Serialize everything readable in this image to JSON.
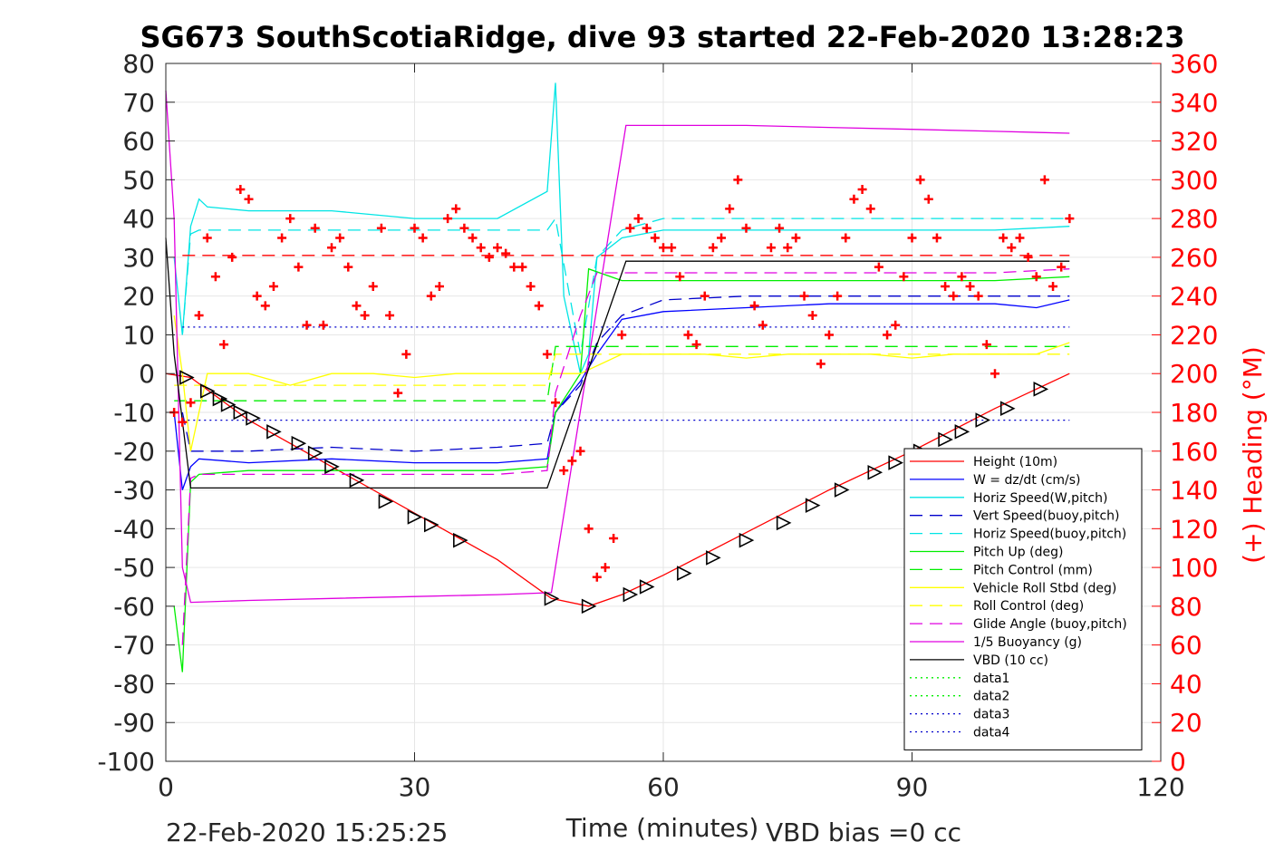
{
  "chart_data": {
    "type": "line",
    "title": "SG673 SouthScotiaRidge, dive 93 started 22-Feb-2020 13:28:23",
    "xlabel": "Time (minutes)",
    "ylabel_right": "(+) Heading (°M)",
    "footer_left": "22-Feb-2020 15:25:25",
    "footer_right": "VBD bias =0 cc",
    "xlim": [
      0,
      120
    ],
    "ylim": [
      -100,
      80
    ],
    "ylim_right": [
      0,
      360
    ],
    "xticks": [
      "0",
      "30",
      "60",
      "90",
      "120"
    ],
    "yticks": [
      "80",
      "70",
      "60",
      "50",
      "40",
      "30",
      "20",
      "10",
      "0",
      "-10",
      "-20",
      "-30",
      "-40",
      "-50",
      "-60",
      "-70",
      "-80",
      "-90",
      "-100"
    ],
    "yticks_right": [
      "360",
      "340",
      "320",
      "300",
      "280",
      "260",
      "240",
      "220",
      "200",
      "180",
      "160",
      "140",
      "120",
      "100",
      "80",
      "60",
      "40",
      "20",
      "0"
    ],
    "grid": true,
    "legend_position": "bottom-right",
    "series": [
      {
        "name": "Height (10m)",
        "color": "#ff0000",
        "style": "solid",
        "x": [
          0,
          3,
          10,
          20,
          30,
          40,
          46.5,
          51,
          55,
          60,
          70,
          80,
          90,
          100,
          109
        ],
        "y": [
          0,
          -1,
          -12,
          -24,
          -36,
          -48,
          -58,
          -60,
          -57,
          -52,
          -41,
          -30,
          -20,
          -9,
          0
        ]
      },
      {
        "name": "W = dz/dt (cm/s)",
        "color": "#0000ff",
        "style": "solid",
        "x": [
          1,
          2,
          3,
          4,
          10,
          20,
          30,
          40,
          46,
          47,
          50,
          52,
          55,
          60,
          70,
          80,
          90,
          100,
          105,
          109
        ],
        "y": [
          -10,
          -30,
          -24,
          -22,
          -23,
          -22,
          -23,
          -23,
          -22,
          -10,
          -2,
          5,
          14,
          16,
          17,
          18,
          18,
          18,
          17,
          19
        ]
      },
      {
        "name": "Horiz Speed(W,pitch)",
        "color": "#00e5e5",
        "style": "solid",
        "x": [
          1,
          2,
          3,
          4,
          5,
          10,
          20,
          30,
          40,
          46,
          47,
          48,
          49,
          50,
          51,
          52,
          55,
          60,
          70,
          80,
          90,
          100,
          109
        ],
        "y": [
          30,
          10,
          38,
          45,
          43,
          42,
          42,
          40,
          40,
          47,
          75,
          20,
          10,
          0,
          5,
          30,
          35,
          37,
          37,
          37,
          37,
          37,
          38
        ]
      },
      {
        "name": "Vert Speed(buoy,pitch)",
        "color": "#0000cc",
        "style": "dashed",
        "x": [
          2,
          3,
          4,
          10,
          20,
          30,
          40,
          46,
          47,
          50,
          52,
          55,
          60,
          70,
          80,
          90,
          100,
          109
        ],
        "y": [
          -10,
          -20,
          -20,
          -20,
          -19,
          -20,
          -19,
          -18,
          -10,
          -3,
          8,
          15,
          19,
          20,
          20,
          20,
          20,
          20
        ]
      },
      {
        "name": "Horiz Speed(buoy,pitch)",
        "color": "#00e5e5",
        "style": "dashed",
        "x": [
          2,
          3,
          4,
          10,
          20,
          30,
          40,
          46,
          47,
          50,
          52,
          55,
          60,
          70,
          80,
          90,
          100,
          109
        ],
        "y": [
          10,
          36,
          37,
          37,
          37,
          37,
          37,
          37,
          40,
          5,
          30,
          37,
          40,
          40,
          40,
          40,
          40,
          40
        ]
      },
      {
        "name": "Pitch Up (deg)",
        "color": "#00ee00",
        "style": "solid",
        "x": [
          1,
          2,
          3,
          4,
          10,
          20,
          30,
          40,
          46,
          47,
          50,
          51,
          55,
          60,
          70,
          80,
          90,
          100,
          109
        ],
        "y": [
          -60,
          -77,
          -28,
          -26,
          -25,
          -25,
          -25,
          -25,
          -24,
          -10,
          0,
          27,
          24,
          24,
          24,
          24,
          24,
          24,
          25
        ]
      },
      {
        "name": "Pitch Control (mm)",
        "color": "#00ee00",
        "style": "dashed",
        "x": [
          1,
          3,
          10,
          20,
          30,
          40,
          46,
          47,
          50,
          52,
          60,
          70,
          80,
          90,
          100,
          109
        ],
        "y": [
          -7,
          -7,
          -7,
          -7,
          -7,
          -7,
          -7,
          7,
          7,
          7,
          7,
          7,
          7,
          7,
          7,
          7
        ]
      },
      {
        "name": "Vehicle Roll Stbd (deg)",
        "color": "#ffff00",
        "style": "solid",
        "x": [
          1,
          2,
          3,
          5,
          10,
          15,
          20,
          25,
          30,
          35,
          40,
          46,
          47,
          50,
          55,
          60,
          65,
          70,
          75,
          80,
          85,
          90,
          95,
          100,
          105,
          109
        ],
        "y": [
          15,
          0,
          -20,
          0,
          0,
          -3,
          0,
          0,
          -1,
          0,
          0,
          0,
          0,
          0,
          5,
          5,
          5,
          4,
          5,
          5,
          5,
          4,
          5,
          5,
          5,
          8
        ]
      },
      {
        "name": "Roll Control (deg)",
        "color": "#ffff00",
        "style": "dashed",
        "x": [
          1,
          3,
          10,
          20,
          30,
          40,
          46,
          47,
          55,
          60,
          70,
          80,
          90,
          100,
          109
        ],
        "y": [
          -3,
          -3,
          -3,
          -3,
          -3,
          -3,
          -3,
          5,
          5,
          5,
          5,
          5,
          5,
          5,
          5
        ]
      },
      {
        "name": "Glide Angle (buoy,pitch)",
        "color": "#e000e0",
        "style": "dashed",
        "x": [
          2,
          3,
          4,
          10,
          20,
          30,
          40,
          46,
          47,
          50,
          52,
          55,
          60,
          70,
          80,
          90,
          100,
          109
        ],
        "y": [
          -70,
          -27,
          -26,
          -26,
          -26,
          -26,
          -26,
          -25,
          -5,
          15,
          26,
          26,
          26,
          26,
          26,
          26,
          26,
          27
        ]
      },
      {
        "name": "1/5 Buoyancy (g)",
        "color": "#e000e0",
        "style": "solid",
        "x": [
          0,
          1,
          2,
          3,
          10,
          20,
          30,
          40,
          46.5,
          55.5,
          60,
          70,
          80,
          90,
          100,
          109
        ],
        "y": [
          73,
          40,
          -50,
          -59,
          -58.5,
          -58,
          -57.5,
          -57,
          -56.5,
          64,
          64,
          64,
          63.5,
          63,
          62.5,
          62
        ]
      },
      {
        "name": "VBD (10 cc)",
        "color": "#000000",
        "style": "solid",
        "x": [
          0,
          1,
          3,
          46,
          55.5,
          109
        ],
        "y": [
          35,
          5,
          -29.5,
          -29.5,
          29,
          29
        ]
      },
      {
        "name": "data1",
        "color": "#00ee00",
        "style": "dotted",
        "x": [],
        "y": []
      },
      {
        "name": "data2",
        "color": "#00ee00",
        "style": "dotted",
        "x": [],
        "y": []
      },
      {
        "name": "data3",
        "color": "#0000cc",
        "style": "dotted",
        "x": [
          2,
          109
        ],
        "y": [
          12,
          12
        ]
      },
      {
        "name": "data4",
        "color": "#0000cc",
        "style": "dotted",
        "x": [
          2,
          109
        ],
        "y": [
          -12,
          -12
        ]
      }
    ],
    "reference_lines": [
      {
        "color": "#ff0000",
        "style": "dashed",
        "x": [
          2,
          109
        ],
        "y": [
          30.5,
          30.5
        ]
      }
    ],
    "heading_series": {
      "color": "#ff0000",
      "marker": "+",
      "x": [
        1,
        2,
        3,
        4,
        5,
        6,
        7,
        8,
        9,
        10,
        11,
        12,
        13,
        14,
        15,
        16,
        17,
        18,
        19,
        20,
        21,
        22,
        23,
        24,
        25,
        26,
        27,
        28,
        29,
        30,
        31,
        32,
        33,
        34,
        35,
        36,
        37,
        38,
        39,
        40,
        41,
        42,
        43,
        44,
        45,
        46,
        47,
        48,
        49,
        50,
        51,
        52,
        53,
        54,
        55,
        56,
        57,
        58,
        59,
        60,
        61,
        62,
        63,
        64,
        65,
        66,
        67,
        68,
        69,
        70,
        71,
        72,
        73,
        74,
        75,
        76,
        77,
        78,
        79,
        80,
        81,
        82,
        83,
        84,
        85,
        86,
        87,
        88,
        89,
        90,
        91,
        92,
        93,
        94,
        95,
        96,
        97,
        98,
        99,
        100,
        101,
        102,
        103,
        104,
        105,
        106,
        107,
        108,
        109
      ],
      "y": [
        180,
        175,
        185,
        230,
        270,
        250,
        215,
        260,
        295,
        290,
        240,
        235,
        245,
        270,
        280,
        255,
        225,
        275,
        225,
        265,
        270,
        255,
        235,
        230,
        245,
        275,
        230,
        190,
        210,
        275,
        270,
        240,
        245,
        280,
        285,
        275,
        270,
        265,
        260,
        265,
        262,
        255,
        255,
        245,
        235,
        210,
        185,
        150,
        155,
        160,
        120,
        95,
        100,
        115,
        220,
        275,
        280,
        275,
        270,
        265,
        265,
        250,
        220,
        215,
        240,
        265,
        270,
        285,
        300,
        275,
        235,
        225,
        265,
        275,
        265,
        270,
        240,
        230,
        205,
        220,
        240,
        270,
        290,
        295,
        285,
        255,
        220,
        225,
        250,
        270,
        300,
        290,
        270,
        245,
        240,
        250,
        245,
        240,
        215,
        200,
        270,
        265,
        270,
        260,
        250,
        300,
        245,
        255,
        280
      ]
    },
    "markers_series": {
      "color": "#000000",
      "marker": "triangle-right",
      "x": [
        2.5,
        5,
        6.5,
        7.5,
        9,
        10.5,
        13,
        16,
        18,
        20,
        23,
        26.5,
        30,
        32,
        35.5,
        46.5,
        51,
        56,
        58,
        62.5,
        66,
        70,
        74.5,
        78,
        81.5,
        85.5,
        88,
        91,
        94,
        96,
        98.5,
        101.5,
        105.5
      ],
      "y": [
        -1,
        -4.5,
        -6.5,
        -8,
        -10,
        -11.5,
        -15,
        -18,
        -20.5,
        -24,
        -27.5,
        -33,
        -37,
        -39,
        -43,
        -58,
        -60,
        -57,
        -55,
        -51.5,
        -47.5,
        -43,
        -38.5,
        -34,
        -30,
        -25.5,
        -23,
        -20,
        -17,
        -15,
        -12,
        -9,
        -4
      ]
    }
  }
}
